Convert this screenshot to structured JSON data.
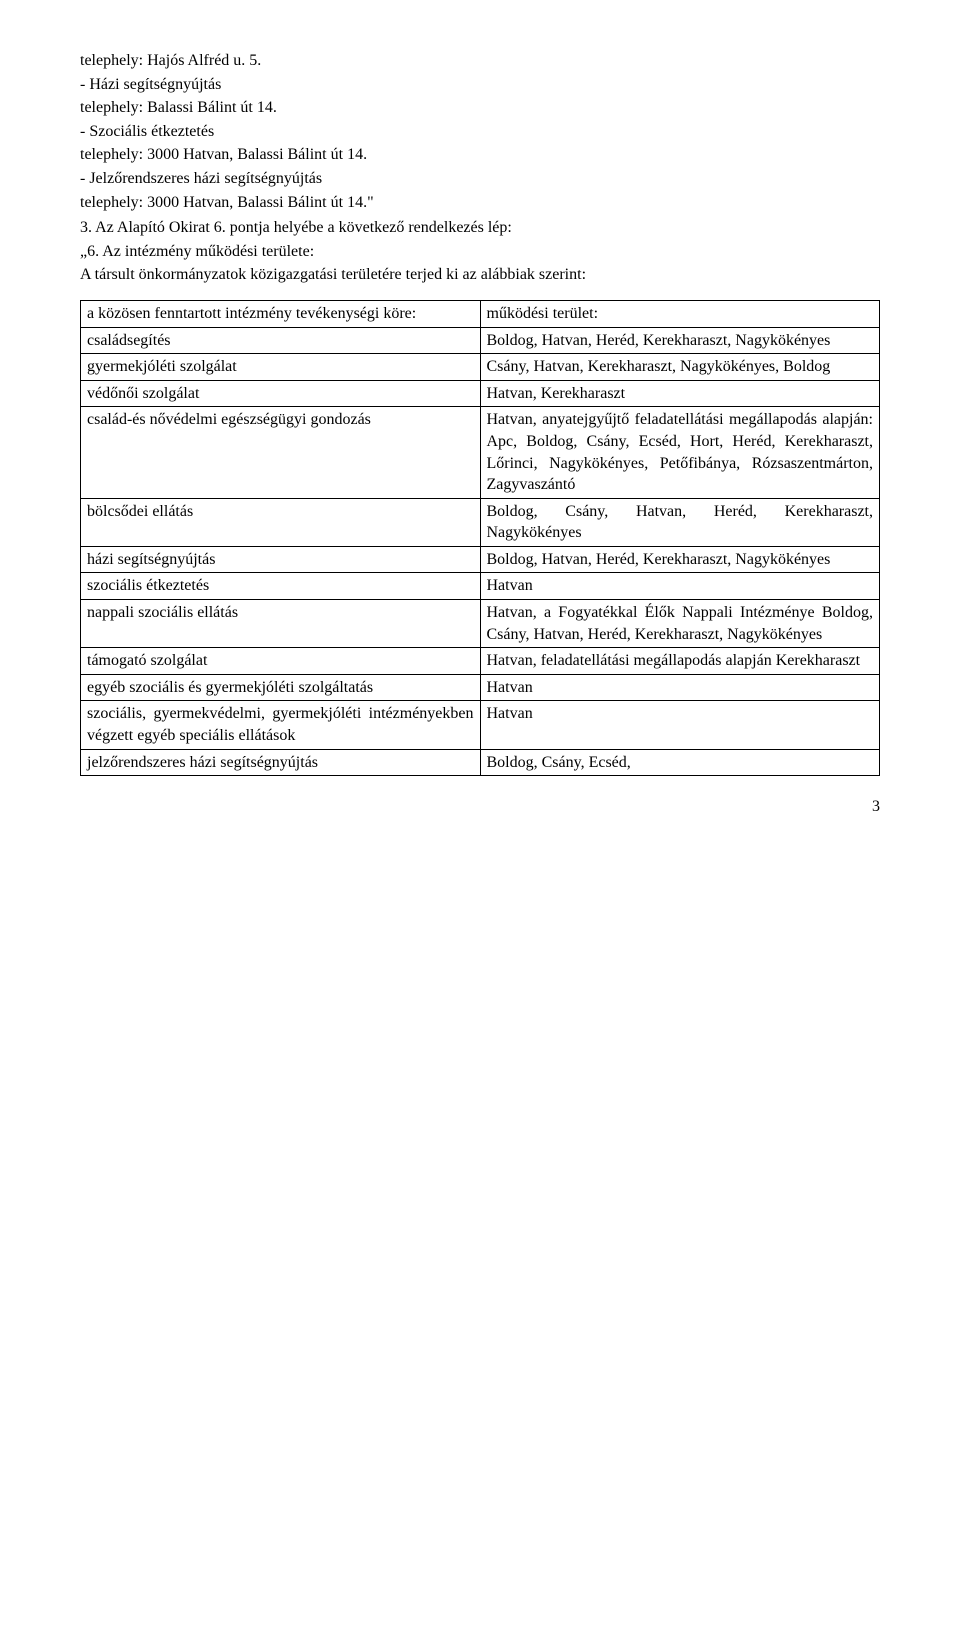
{
  "intro": {
    "l1": "telephely: Hajós Alfréd u. 5.",
    "l2": "- Házi segítségnyújtás",
    "l3": "telephely: Balassi Bálint út 14.",
    "l4": "- Szociális étkeztetés",
    "l5": "telephely: 3000 Hatvan, Balassi Bálint út 14.",
    "l6": "- Jelzőrendszeres házi segítségnyújtás",
    "l7": "telephely: 3000 Hatvan, Balassi Bálint út 14.\"",
    "l8": "3. Az Alapító Okirat 6. pontja helyébe a következő rendelkezés lép:",
    "l9": "„6. Az intézmény működési területe:",
    "l10": "A társult önkormányzatok közigazgatási területére terjed ki az alábbiak szerint:"
  },
  "table": {
    "header_left": "a közösen fenntartott intézmény tevékenységi köre:",
    "header_right": "működési terület:",
    "rows": [
      {
        "l": "családsegítés",
        "r": "Boldog, Hatvan, Heréd, Kerekharaszt, Nagykökényes"
      },
      {
        "l": "gyermekjóléti szolgálat",
        "r": "Csány, Hatvan, Kerekharaszt, Nagykökényes, Boldog"
      },
      {
        "l": "védőnői szolgálat",
        "r": "Hatvan, Kerekharaszt"
      },
      {
        "l": "család-és nővédelmi egészségügyi gondozás",
        "r": "Hatvan, anyatejgyűjtő feladatellátási megállapodás alapján: Apc, Boldog, Csány, Ecséd, Hort, Heréd, Kerekharaszt, Lőrinci, Nagykökényes, Petőfibánya, Rózsaszentmárton, Zagyvaszántó"
      },
      {
        "l": "bölcsődei ellátás",
        "r": "Boldog, Csány, Hatvan, Heréd, Kerekharaszt, Nagykökényes"
      },
      {
        "l": "házi segítségnyújtás",
        "r": "Boldog, Hatvan, Heréd, Kerekharaszt, Nagykökényes"
      },
      {
        "l": "szociális étkeztetés",
        "r": "Hatvan"
      },
      {
        "l": "nappali szociális ellátás",
        "r": "Hatvan, a Fogyatékkal Élők Nappali Intézménye Boldog, Csány, Hatvan, Heréd, Kerekharaszt, Nagykökényes"
      },
      {
        "l": "támogató szolgálat",
        "r": "Hatvan, feladatellátási megállapodás alapján Kerekharaszt"
      },
      {
        "l": "egyéb szociális és gyermekjóléti szolgáltatás",
        "r": "Hatvan"
      },
      {
        "l": "szociális, gyermekvédelmi, gyermekjóléti intézményekben végzett egyéb speciális ellátások",
        "r": "Hatvan"
      },
      {
        "l": "jelzőrendszeres házi segítségnyújtás",
        "r": "Boldog, Csány, Ecséd,"
      }
    ]
  },
  "page_number": "3"
}
